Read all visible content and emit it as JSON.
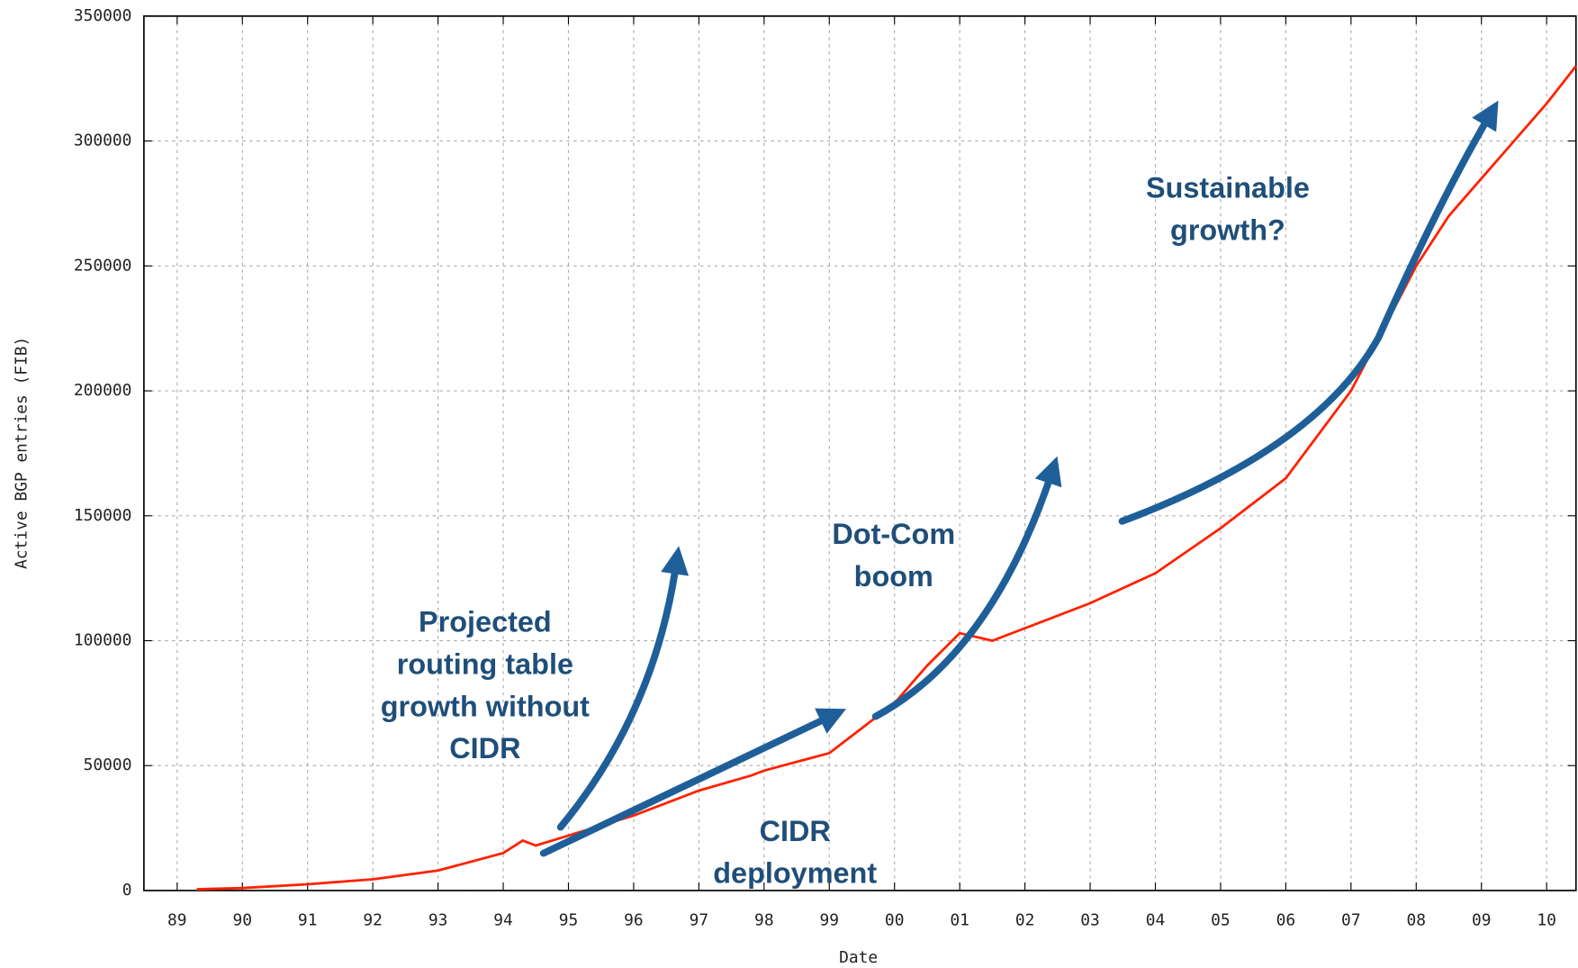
{
  "chart_data": {
    "type": "line",
    "x_label": "Date",
    "y_label": "Active BGP entries (FIB)",
    "x": [
      1989.3,
      1990,
      1991,
      1992,
      1993,
      1994,
      1994.3,
      1994.5,
      1995,
      1996,
      1997,
      1997.8,
      1998,
      1999,
      1999.5,
      2000,
      2000.5,
      2001,
      2001.5,
      2002,
      2003,
      2004,
      2005,
      2006,
      2007,
      2007.5,
      2008,
      2008.5,
      2009,
      2009.5,
      2010,
      2010.45
    ],
    "values": [
      500,
      1000,
      2500,
      4500,
      8000,
      15000,
      20000,
      18000,
      22000,
      30000,
      40000,
      46000,
      48000,
      55000,
      65000,
      75000,
      90000,
      103000,
      100000,
      105000,
      115000,
      127000,
      145000,
      165000,
      200000,
      225000,
      250000,
      270000,
      285000,
      300000,
      315000,
      330000
    ],
    "color": "#ff2200",
    "xlim": [
      1988.49,
      2010.45
    ],
    "ylim": [
      0,
      350000
    ],
    "yticks": [
      0,
      50000,
      100000,
      150000,
      200000,
      250000,
      300000,
      350000
    ],
    "xticks": [
      {
        "value": 1989,
        "label": "89"
      },
      {
        "value": 1990,
        "label": "90"
      },
      {
        "value": 1991,
        "label": "91"
      },
      {
        "value": 1992,
        "label": "92"
      },
      {
        "value": 1993,
        "label": "93"
      },
      {
        "value": 1994,
        "label": "94"
      },
      {
        "value": 1995,
        "label": "95"
      },
      {
        "value": 1996,
        "label": "96"
      },
      {
        "value": 1997,
        "label": "97"
      },
      {
        "value": 1998,
        "label": "98"
      },
      {
        "value": 1999,
        "label": "99"
      },
      {
        "value": 2000,
        "label": "00"
      },
      {
        "value": 2001,
        "label": "01"
      },
      {
        "value": 2002,
        "label": "02"
      },
      {
        "value": 2003,
        "label": "03"
      },
      {
        "value": 2004,
        "label": "04"
      },
      {
        "value": 2005,
        "label": "05"
      },
      {
        "value": 2006,
        "label": "06"
      },
      {
        "value": 2007,
        "label": "07"
      },
      {
        "value": 2008,
        "label": "08"
      },
      {
        "value": 2009,
        "label": "09"
      },
      {
        "value": 2010,
        "label": "10"
      }
    ],
    "grid": true,
    "annotations": [
      {
        "lines": [
          "Projected",
          "routing table",
          "growth without",
          "CIDR"
        ]
      },
      {
        "lines": [
          "Dot-Com",
          "boom"
        ]
      },
      {
        "lines": [
          "CIDR",
          "deployment"
        ]
      },
      {
        "lines": [
          "Sustainable",
          "growth?"
        ]
      }
    ]
  }
}
